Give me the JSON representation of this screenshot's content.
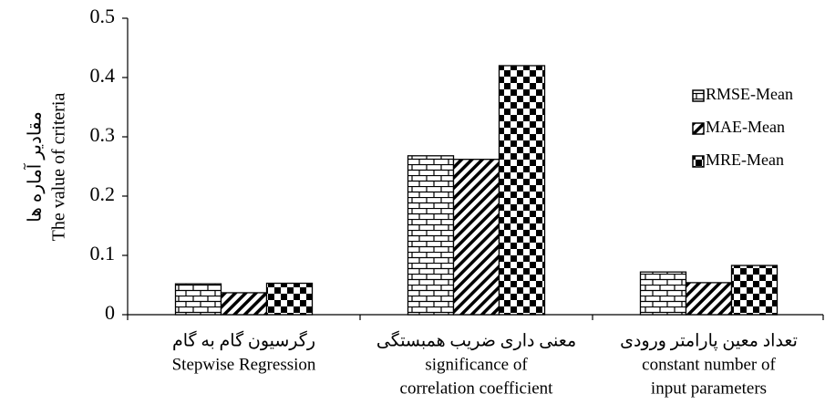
{
  "chart_data": {
    "type": "bar",
    "ylabel": [
      "مقادیر آماره ها",
      "The value of criteria"
    ],
    "categories": [
      [
        "رگرسیون گام به گام",
        "Stepwise Regression"
      ],
      [
        "معنی داری ضریب همبستگی",
        "significance of",
        "correlation coefficient"
      ],
      [
        "تعداد معین پارامتر ورودی",
        "constant number of",
        "input parameters"
      ]
    ],
    "series": [
      {
        "name": "RMSE-Mean",
        "color": "#000000",
        "pattern": "brick",
        "values": [
          0.052,
          0.268,
          0.072
        ]
      },
      {
        "name": "MAE-Mean",
        "color": "#000000",
        "pattern": "diagonal",
        "values": [
          0.037,
          0.262,
          0.054
        ]
      },
      {
        "name": "MRE-Mean",
        "color": "#000000",
        "pattern": "checker",
        "values": [
          0.053,
          0.42,
          0.083
        ]
      }
    ],
    "ylim": [
      0,
      0.5
    ],
    "yticks": [
      0,
      0.1,
      0.2,
      0.3,
      0.4,
      0.5
    ],
    "grid": false,
    "legend": "upper right"
  }
}
